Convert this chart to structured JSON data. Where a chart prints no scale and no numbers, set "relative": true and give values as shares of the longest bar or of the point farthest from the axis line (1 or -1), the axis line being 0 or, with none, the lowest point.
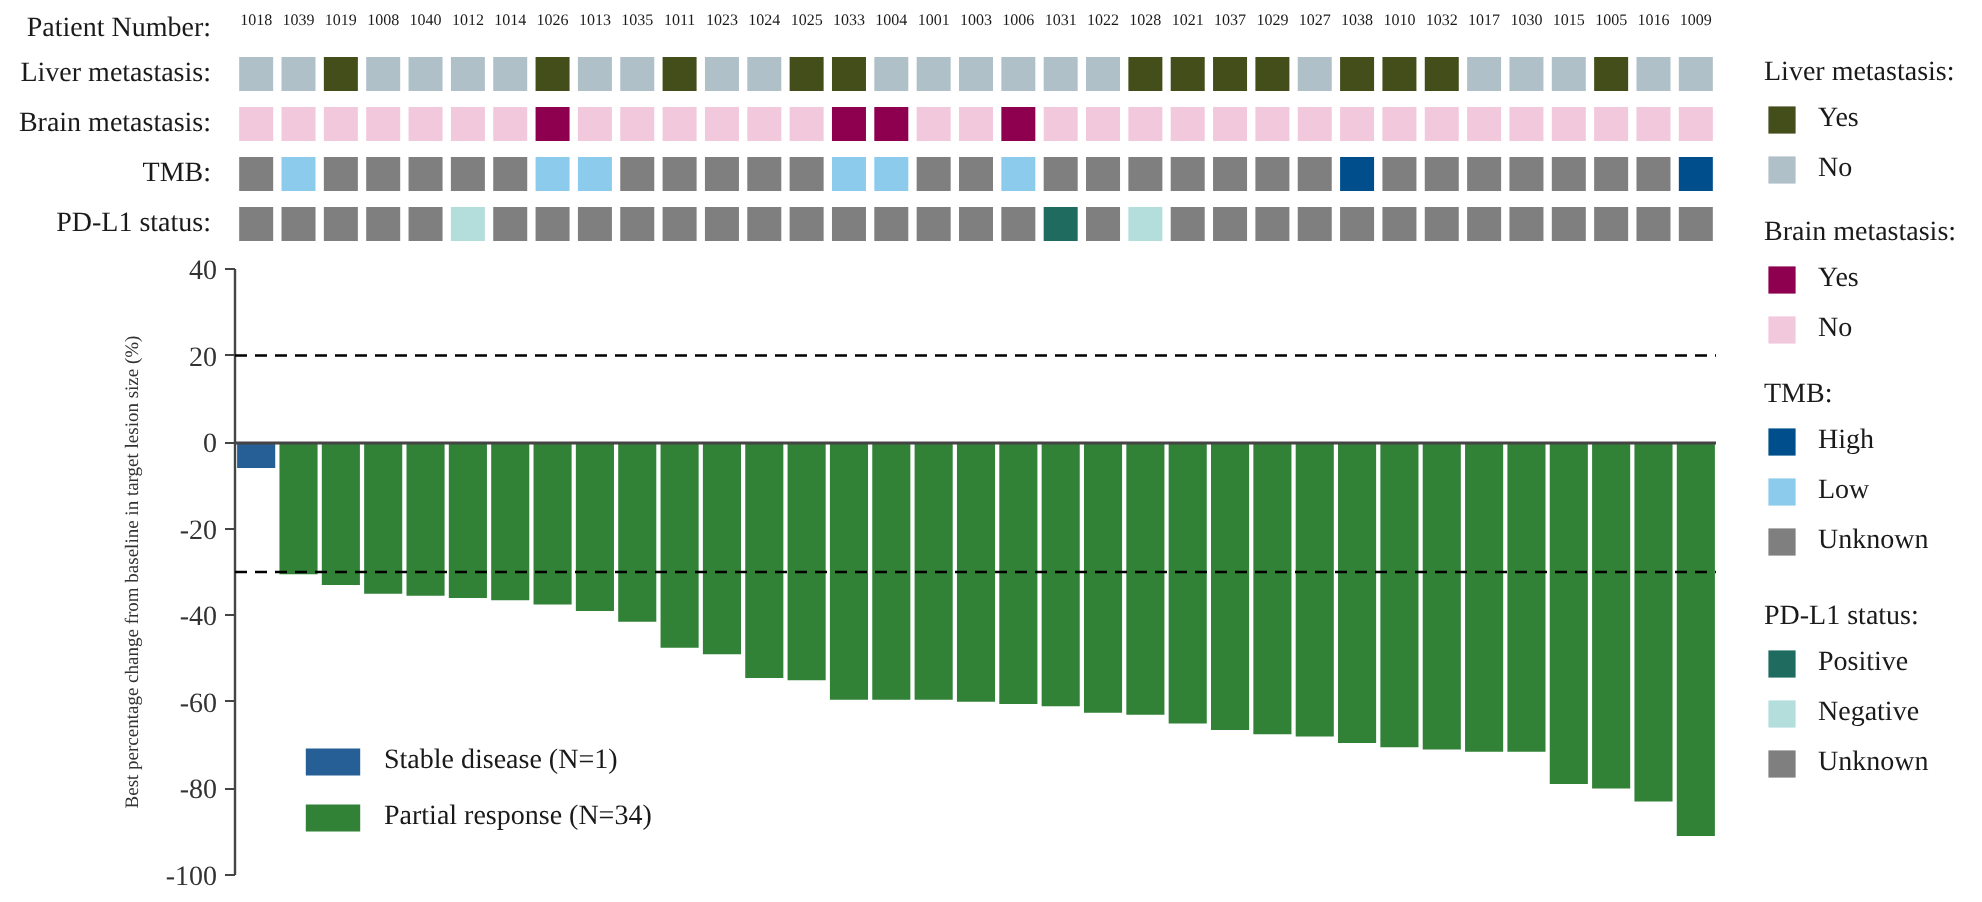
{
  "chart_data": [
    {
      "type": "bar",
      "relative": true,
      "tick_labels": "x",
      "xlabel": "Patient Number:",
      "ylabel": "Liver metastasis:",
      "legend": "right",
      "legend_title": "Liver metastasis:",
      "categories": [
        "1018",
        "1039",
        "1019",
        "1008",
        "1040",
        "1012",
        "1014",
        "1026",
        "1013",
        "1035",
        "1011",
        "1023",
        "1024",
        "1025",
        "1033",
        "1004",
        "1001",
        "1003",
        "1006",
        "1031",
        "1022",
        "1028",
        "1021",
        "1037",
        "1029",
        "1027",
        "1038",
        "1010",
        "1032",
        "1017",
        "1030",
        "1015",
        "1005",
        "1016",
        "1009"
      ],
      "series": [
        {
          "name": "Yes",
          "color": "#434e1a",
          "values": [
            null,
            null,
            1,
            null,
            null,
            null,
            null,
            1,
            null,
            null,
            1,
            null,
            null,
            1,
            1,
            null,
            null,
            null,
            null,
            null,
            null,
            1,
            1,
            1,
            1,
            null,
            1,
            1,
            1,
            null,
            null,
            null,
            1,
            null,
            null
          ]
        },
        {
          "name": "No",
          "color": "#b0c0c8",
          "values": [
            1,
            1,
            null,
            1,
            1,
            1,
            1,
            null,
            1,
            1,
            null,
            1,
            1,
            null,
            null,
            1,
            1,
            1,
            1,
            1,
            1,
            null,
            null,
            null,
            null,
            1,
            null,
            null,
            null,
            1,
            1,
            1,
            null,
            1,
            1
          ]
        }
      ]
    },
    {
      "type": "bar",
      "relative": true,
      "tick_labels": false,
      "ylabel": "Brain metastasis:",
      "legend": "right",
      "legend_title": "Brain metastasis:",
      "categories": [
        "1018",
        "1039",
        "1019",
        "1008",
        "1040",
        "1012",
        "1014",
        "1026",
        "1013",
        "1035",
        "1011",
        "1023",
        "1024",
        "1025",
        "1033",
        "1004",
        "1001",
        "1003",
        "1006",
        "1031",
        "1022",
        "1028",
        "1021",
        "1037",
        "1029",
        "1027",
        "1038",
        "1010",
        "1032",
        "1017",
        "1030",
        "1015",
        "1005",
        "1016",
        "1009"
      ],
      "series": [
        {
          "name": "Yes",
          "color": "#8e004f",
          "values": [
            null,
            null,
            null,
            null,
            null,
            null,
            null,
            1,
            null,
            null,
            null,
            null,
            null,
            null,
            1,
            1,
            null,
            null,
            1,
            null,
            null,
            null,
            null,
            null,
            null,
            null,
            null,
            null,
            null,
            null,
            null,
            null,
            null,
            null,
            null
          ]
        },
        {
          "name": "No",
          "color": "#f2c8dc",
          "values": [
            1,
            1,
            1,
            1,
            1,
            1,
            1,
            null,
            1,
            1,
            1,
            1,
            1,
            1,
            null,
            null,
            1,
            1,
            null,
            1,
            1,
            1,
            1,
            1,
            1,
            1,
            1,
            1,
            1,
            1,
            1,
            1,
            1,
            1,
            1
          ]
        }
      ]
    },
    {
      "type": "bar",
      "relative": true,
      "tick_labels": false,
      "ylabel": "TMB:",
      "legend": "right",
      "legend_title": "TMB:",
      "categories": [
        "1018",
        "1039",
        "1019",
        "1008",
        "1040",
        "1012",
        "1014",
        "1026",
        "1013",
        "1035",
        "1011",
        "1023",
        "1024",
        "1025",
        "1033",
        "1004",
        "1001",
        "1003",
        "1006",
        "1031",
        "1022",
        "1028",
        "1021",
        "1037",
        "1029",
        "1027",
        "1038",
        "1010",
        "1032",
        "1017",
        "1030",
        "1015",
        "1005",
        "1016",
        "1009"
      ],
      "series": [
        {
          "name": "High",
          "color": "#004f8c",
          "values": [
            null,
            null,
            null,
            null,
            null,
            null,
            null,
            null,
            null,
            null,
            null,
            null,
            null,
            null,
            null,
            null,
            null,
            null,
            null,
            null,
            null,
            null,
            null,
            null,
            null,
            null,
            1,
            null,
            null,
            null,
            null,
            null,
            null,
            null,
            1
          ]
        },
        {
          "name": "Low",
          "color": "#8dcbec",
          "values": [
            null,
            1,
            null,
            null,
            null,
            null,
            null,
            1,
            1,
            null,
            null,
            null,
            null,
            null,
            1,
            1,
            null,
            null,
            1,
            null,
            null,
            null,
            null,
            null,
            null,
            null,
            null,
            null,
            null,
            null,
            null,
            null,
            null,
            null,
            null
          ]
        },
        {
          "name": "Unknown",
          "color": "#7f7f7f",
          "values": [
            1,
            null,
            1,
            1,
            1,
            1,
            1,
            null,
            null,
            1,
            1,
            1,
            1,
            1,
            null,
            null,
            1,
            1,
            null,
            1,
            1,
            1,
            1,
            1,
            1,
            1,
            null,
            1,
            1,
            1,
            1,
            1,
            1,
            1,
            null
          ]
        }
      ]
    },
    {
      "type": "bar",
      "relative": true,
      "tick_labels": false,
      "ylabel": "PD-L1 status:",
      "legend": "right",
      "legend_title": "PD-L1 status:",
      "categories": [
        "1018",
        "1039",
        "1019",
        "1008",
        "1040",
        "1012",
        "1014",
        "1026",
        "1013",
        "1035",
        "1011",
        "1023",
        "1024",
        "1025",
        "1033",
        "1004",
        "1001",
        "1003",
        "1006",
        "1031",
        "1022",
        "1028",
        "1021",
        "1037",
        "1029",
        "1027",
        "1038",
        "1010",
        "1032",
        "1017",
        "1030",
        "1015",
        "1005",
        "1016",
        "1009"
      ],
      "series": [
        {
          "name": "Positive",
          "color": "#206b60",
          "values": [
            null,
            null,
            null,
            null,
            null,
            null,
            null,
            null,
            null,
            null,
            null,
            null,
            null,
            null,
            null,
            null,
            null,
            null,
            null,
            1,
            null,
            null,
            null,
            null,
            null,
            null,
            null,
            null,
            null,
            null,
            null,
            null,
            null,
            null,
            null
          ]
        },
        {
          "name": "Negative",
          "color": "#b3dedc",
          "values": [
            null,
            null,
            null,
            null,
            null,
            1,
            null,
            null,
            null,
            null,
            null,
            null,
            null,
            null,
            null,
            null,
            null,
            null,
            null,
            null,
            null,
            1,
            null,
            null,
            null,
            null,
            null,
            null,
            null,
            null,
            null,
            null,
            null,
            null,
            null
          ]
        },
        {
          "name": "Unknown",
          "color": "#7f7f7f",
          "values": [
            1,
            1,
            1,
            1,
            1,
            null,
            1,
            1,
            1,
            1,
            1,
            1,
            1,
            1,
            1,
            1,
            1,
            1,
            1,
            null,
            1,
            null,
            1,
            1,
            1,
            1,
            1,
            1,
            1,
            1,
            1,
            1,
            1,
            1,
            1
          ]
        }
      ]
    },
    {
      "type": "bar",
      "tick_labels": "y",
      "categories": [
        "1018",
        "1039",
        "1019",
        "1008",
        "1040",
        "1012",
        "1014",
        "1026",
        "1013",
        "1035",
        "1011",
        "1023",
        "1024",
        "1025",
        "1033",
        "1004",
        "1001",
        "1003",
        "1006",
        "1031",
        "1022",
        "1028",
        "1021",
        "1037",
        "1029",
        "1027",
        "1038",
        "1010",
        "1032",
        "1017",
        "1030",
        "1015",
        "1005",
        "1016",
        "1009"
      ],
      "ylabel": "Best percentage change from baseline in target lesion size (%)",
      "ylim": [
        -100,
        40
      ],
      "yticks": [
        40,
        20,
        0,
        -20,
        -40,
        -60,
        -80,
        -100
      ],
      "legend": "bottom left",
      "series": [
        {
          "name": "Stable disease (N=1)",
          "color": "#265f95",
          "values": [
            -6,
            null,
            null,
            null,
            null,
            null,
            null,
            null,
            null,
            null,
            null,
            null,
            null,
            null,
            null,
            null,
            null,
            null,
            null,
            null,
            null,
            null,
            null,
            null,
            null,
            null,
            null,
            null,
            null,
            null,
            null,
            null,
            null,
            null,
            null
          ]
        },
        {
          "name": "Partial response (N=34)",
          "color": "#318237",
          "values": [
            null,
            -30.5,
            -33,
            -35,
            -35.5,
            -36,
            -36.5,
            -37.5,
            -39,
            -41.5,
            -47.5,
            -49,
            -54.5,
            -55,
            -59.5,
            -59.5,
            -59.5,
            -60,
            -60.5,
            -61,
            -62.5,
            -63,
            -65,
            -66.5,
            -67.5,
            -68,
            -69.5,
            -70.5,
            -71,
            -71.5,
            -71.5,
            -79,
            -80,
            -83,
            -91
          ]
        }
      ],
      "ref_lines": [
        {
          "axis": "y",
          "value": 20,
          "color": "#000000",
          "line_style": "dashed"
        },
        {
          "axis": "y",
          "value": -30,
          "color": "#000000",
          "line_style": "dashed"
        }
      ]
    }
  ]
}
